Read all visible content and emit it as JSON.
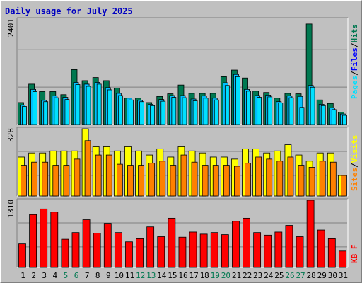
{
  "title": "Daily usage for July 2025",
  "colors": {
    "hits": "#007850",
    "files": "#0000ff",
    "files_fill": "#00c0ff",
    "pages": "#00e0ff",
    "visits": "#ffff00",
    "sites": "#ff8000",
    "kbytes": "#ff0000",
    "title": "#0000c0",
    "weekend": "#007850"
  },
  "chart_data": [
    {
      "type": "bar",
      "name": "hits-files-pages",
      "categories": [
        "1",
        "2",
        "3",
        "4",
        "5",
        "6",
        "7",
        "8",
        "9",
        "10",
        "11",
        "12",
        "13",
        "14",
        "15",
        "16",
        "17",
        "18",
        "19",
        "20",
        "21",
        "22",
        "23",
        "24",
        "25",
        "26",
        "27",
        "28",
        "29",
        "30",
        "31"
      ],
      "weekend_days": [
        5,
        6,
        12,
        13,
        19,
        20,
        26,
        27
      ],
      "ymax_label": "2401",
      "ylim": [
        0,
        2401
      ],
      "legend": [
        "Pages",
        "/",
        "Files",
        "/",
        "Hits"
      ],
      "series": [
        {
          "name": "Hits",
          "values": [
            500,
            920,
            750,
            750,
            680,
            1250,
            1000,
            1070,
            1000,
            830,
            600,
            600,
            500,
            640,
            700,
            900,
            710,
            710,
            710,
            1090,
            1240,
            1060,
            760,
            730,
            600,
            710,
            700,
            2290,
            560,
            480,
            280
          ]
        },
        {
          "name": "Files",
          "values": [
            440,
            800,
            550,
            650,
            620,
            960,
            920,
            960,
            840,
            710,
            600,
            550,
            460,
            570,
            660,
            660,
            580,
            650,
            600,
            950,
            1140,
            800,
            660,
            670,
            520,
            650,
            640,
            890,
            460,
            380,
            240
          ]
        },
        {
          "name": "Pages",
          "values": [
            410,
            750,
            520,
            610,
            570,
            910,
            870,
            920,
            790,
            660,
            560,
            520,
            430,
            530,
            620,
            610,
            540,
            600,
            560,
            890,
            1090,
            760,
            620,
            630,
            490,
            610,
            390,
            850,
            430,
            340,
            210
          ]
        }
      ]
    },
    {
      "type": "bar",
      "name": "visits-sites",
      "categories": [
        "1",
        "2",
        "3",
        "4",
        "5",
        "6",
        "7",
        "8",
        "9",
        "10",
        "11",
        "12",
        "13",
        "14",
        "15",
        "16",
        "17",
        "18",
        "19",
        "20",
        "21",
        "22",
        "23",
        "24",
        "25",
        "26",
        "27",
        "28",
        "29",
        "30",
        "31"
      ],
      "ymax_label": "328",
      "ylim": [
        0,
        328
      ],
      "legend": [
        "Sites",
        "/",
        "Visits"
      ],
      "series": [
        {
          "name": "Visits",
          "values": [
            190,
            210,
            210,
            220,
            220,
            220,
            328,
            240,
            240,
            220,
            240,
            220,
            200,
            230,
            190,
            240,
            220,
            210,
            190,
            190,
            180,
            230,
            230,
            210,
            220,
            250,
            200,
            170,
            210,
            210,
            100
          ]
        },
        {
          "name": "Sites",
          "values": [
            150,
            165,
            165,
            150,
            150,
            180,
            270,
            200,
            200,
            155,
            150,
            150,
            160,
            170,
            150,
            200,
            165,
            150,
            150,
            150,
            145,
            160,
            190,
            180,
            170,
            190,
            150,
            140,
            170,
            165,
            100
          ]
        }
      ]
    },
    {
      "type": "bar",
      "name": "kbytes",
      "categories": [
        "1",
        "2",
        "3",
        "4",
        "5",
        "6",
        "7",
        "8",
        "9",
        "10",
        "11",
        "12",
        "13",
        "14",
        "15",
        "16",
        "17",
        "18",
        "19",
        "20",
        "21",
        "22",
        "23",
        "24",
        "25",
        "26",
        "27",
        "28",
        "29",
        "30",
        "31"
      ],
      "ymax_label": "1310",
      "ylim": [
        0,
        1310
      ],
      "legend": [
        "KB",
        "F"
      ],
      "series": [
        {
          "name": "KBytes",
          "values": [
            460,
            1030,
            1140,
            1080,
            550,
            680,
            930,
            670,
            860,
            680,
            500,
            560,
            790,
            600,
            960,
            590,
            690,
            650,
            680,
            640,
            900,
            960,
            680,
            630,
            690,
            820,
            600,
            1310,
            730,
            560,
            320
          ]
        }
      ]
    }
  ]
}
